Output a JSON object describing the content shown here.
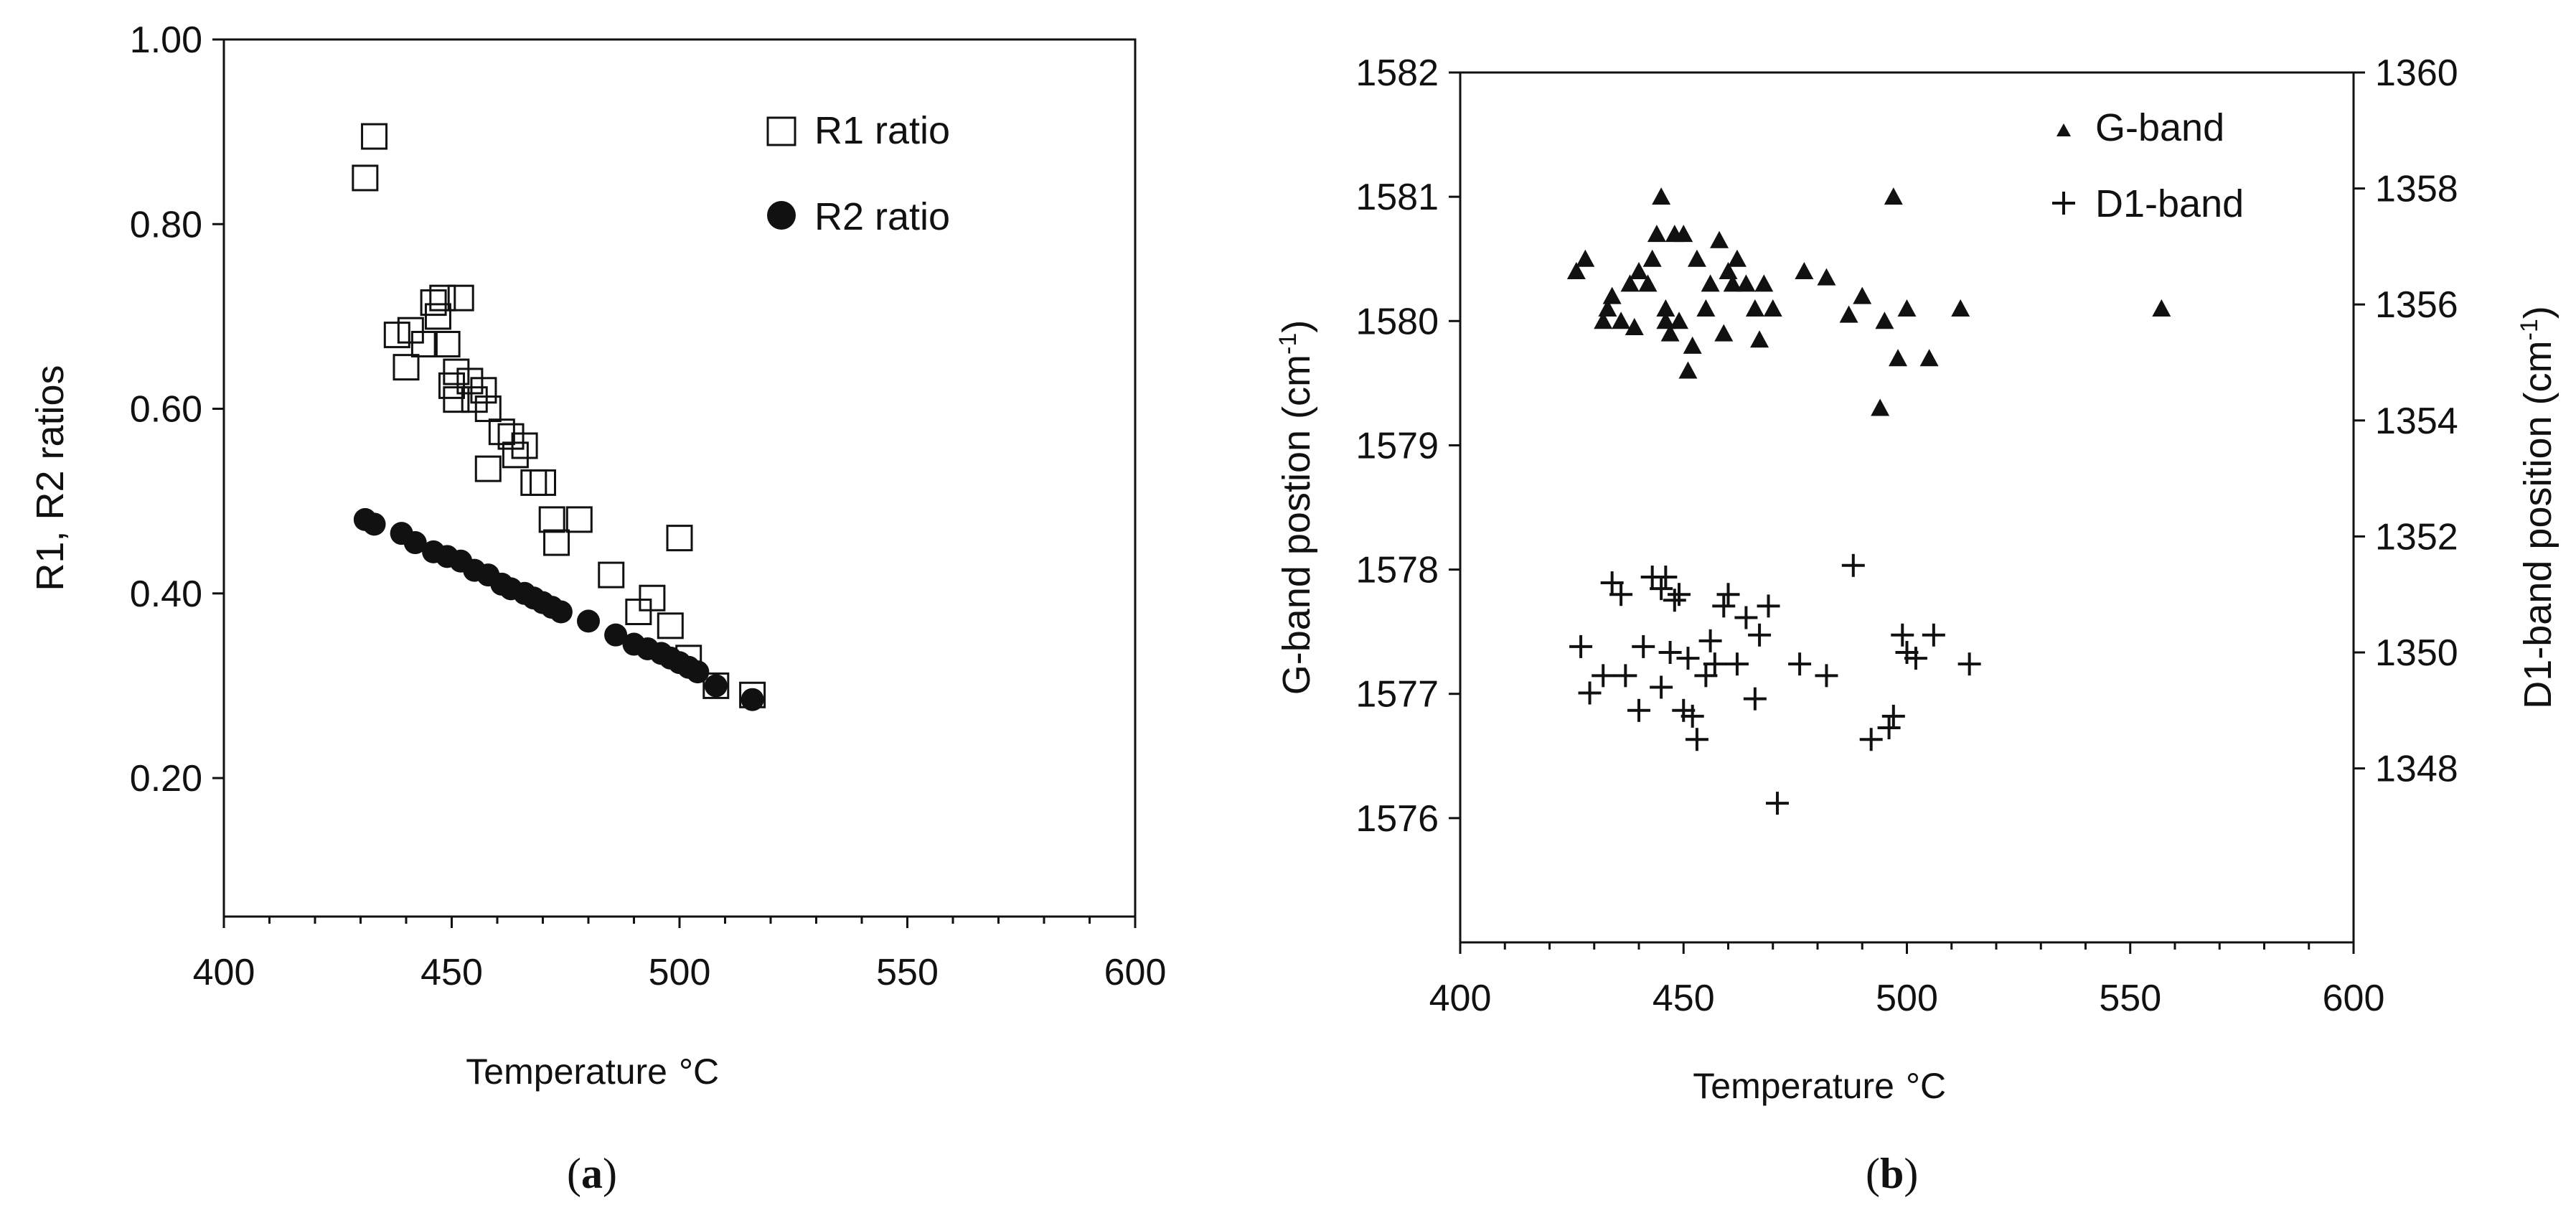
{
  "chart_data": [
    {
      "type": "scatter",
      "panel": "a",
      "caption_letter": "a",
      "xlabel": "Temperature",
      "xlabel_unit": "°C",
      "ylabel": "R1, R2 ratios",
      "xlim": [
        400,
        600
      ],
      "ylim": [
        0.05,
        1.0
      ],
      "xticks": [
        400,
        450,
        500,
        550,
        600
      ],
      "yticks": [
        0.2,
        0.4,
        0.6,
        0.8,
        1.0
      ],
      "ytick_labels": [
        "0.20",
        "0.40",
        "0.60",
        "0.80",
        "1.00"
      ],
      "legend_position": "top-right",
      "series": [
        {
          "name": "R1 ratio",
          "marker": "open-square",
          "x": [
            431,
            433,
            438,
            440,
            441,
            444,
            446,
            447,
            448,
            449,
            450,
            451,
            451,
            452,
            454,
            455,
            457,
            458,
            458,
            461,
            463,
            464,
            466,
            468,
            470,
            472,
            473,
            478,
            485,
            491,
            494,
            498,
            500,
            502,
            508,
            516
          ],
          "y": [
            0.85,
            0.895,
            0.68,
            0.645,
            0.685,
            0.67,
            0.715,
            0.7,
            0.72,
            0.67,
            0.625,
            0.61,
            0.64,
            0.72,
            0.63,
            0.61,
            0.62,
            0.6,
            0.535,
            0.575,
            0.57,
            0.55,
            0.56,
            0.52,
            0.52,
            0.48,
            0.455,
            0.48,
            0.42,
            0.38,
            0.395,
            0.365,
            0.46,
            0.33,
            0.3,
            0.29
          ]
        },
        {
          "name": "R2 ratio",
          "marker": "filled-circle",
          "x": [
            431,
            433,
            439,
            442,
            446,
            449,
            452,
            455,
            458,
            461,
            463,
            466,
            468,
            470,
            472,
            474,
            480,
            486,
            490,
            493,
            496,
            498,
            500,
            502,
            504,
            508,
            516
          ],
          "y": [
            0.48,
            0.475,
            0.465,
            0.455,
            0.445,
            0.44,
            0.435,
            0.425,
            0.42,
            0.41,
            0.405,
            0.4,
            0.395,
            0.39,
            0.385,
            0.38,
            0.37,
            0.355,
            0.345,
            0.34,
            0.335,
            0.33,
            0.325,
            0.32,
            0.315,
            0.3,
            0.285
          ]
        }
      ]
    },
    {
      "type": "scatter",
      "panel": "b",
      "caption_letter": "b",
      "xlabel": "Temperature",
      "xlabel_unit": "°C",
      "ylabel": "G-band postion (cm",
      "ylabel_sup": "-1",
      "ylabel_end": ")",
      "y2label": "D1-band position (cm",
      "y2label_sup": "-1",
      "y2label_end": ")",
      "xlim": [
        400,
        600
      ],
      "ylim": [
        1575,
        1582
      ],
      "y2lim": [
        1345,
        1360
      ],
      "xticks": [
        400,
        450,
        500,
        550,
        600
      ],
      "yticks": [
        1576,
        1577,
        1578,
        1579,
        1580,
        1581,
        1582
      ],
      "y2ticks": [
        1348,
        1350,
        1352,
        1354,
        1356,
        1358,
        1360
      ],
      "legend_position": "top-right",
      "series": [
        {
          "name": "G-band",
          "axis": "left",
          "marker": "filled-triangle",
          "x": [
            426,
            428,
            432,
            433,
            434,
            436,
            438,
            439,
            440,
            442,
            443,
            444,
            445,
            446,
            446,
            447,
            448,
            449,
            450,
            451,
            452,
            453,
            455,
            456,
            458,
            459,
            460,
            461,
            462,
            464,
            466,
            467,
            468,
            470,
            477,
            482,
            487,
            490,
            494,
            495,
            497,
            498,
            500,
            505,
            512,
            557
          ],
          "y": [
            1580.4,
            1580.5,
            1580.0,
            1580.1,
            1580.2,
            1580.0,
            1580.3,
            1579.95,
            1580.4,
            1580.3,
            1580.5,
            1580.7,
            1581.0,
            1580.0,
            1580.1,
            1579.9,
            1580.7,
            1580.0,
            1580.7,
            1579.6,
            1579.8,
            1580.5,
            1580.1,
            1580.3,
            1580.65,
            1579.9,
            1580.4,
            1580.3,
            1580.5,
            1580.3,
            1580.1,
            1579.85,
            1580.3,
            1580.1,
            1580.4,
            1580.35,
            1580.05,
            1580.2,
            1579.3,
            1580.0,
            1581.0,
            1579.7,
            1580.1,
            1579.7,
            1580.1,
            1580.1
          ]
        },
        {
          "name": "D1-band",
          "axis": "right",
          "marker": "plus",
          "x": [
            427,
            429,
            432,
            434,
            436,
            437,
            440,
            441,
            443,
            445,
            445,
            446,
            447,
            448,
            449,
            450,
            451,
            452,
            453,
            455,
            456,
            457,
            459,
            460,
            462,
            464,
            466,
            467,
            469,
            471,
            476,
            482,
            488,
            492,
            496,
            497,
            499,
            500,
            502,
            506,
            514
          ],
          "y": [
            1350.1,
            1349.3,
            1349.6,
            1351.2,
            1351.0,
            1349.6,
            1349.0,
            1350.1,
            1351.3,
            1349.4,
            1351.1,
            1351.3,
            1350.0,
            1350.9,
            1351.0,
            1349.0,
            1349.9,
            1348.9,
            1348.5,
            1349.6,
            1350.2,
            1349.8,
            1350.8,
            1351.0,
            1349.8,
            1350.6,
            1349.2,
            1350.3,
            1350.8,
            1347.4,
            1349.8,
            1349.6,
            1351.5,
            1348.5,
            1348.7,
            1348.9,
            1350.3,
            1350.0,
            1349.9,
            1350.3,
            1349.8
          ]
        }
      ]
    }
  ]
}
